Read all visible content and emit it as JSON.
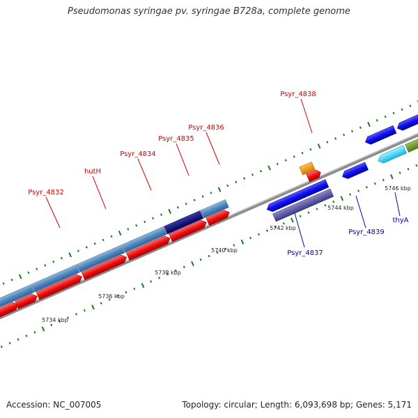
{
  "title": "Pseudomonas syringae pv. syringae B728a, complete genome",
  "footer": {
    "accession": "Accession: NC_007005",
    "summary": "Topology: circular; Length: 6,093,698 bp; Genes: 5,171"
  },
  "colors": {
    "backbone": "#8c8c8c",
    "tick": "#1a7a1a",
    "forward_label": "#cc0000",
    "reverse_label": "#0000b4",
    "leader": "#cc0000",
    "leader_rev": "#0000b4"
  },
  "scale_labels": [
    "5734 kbp",
    "5736 kbp",
    "5738 kbp",
    "5740 kbp",
    "5742 kbp",
    "5744 kbp",
    "5746 kbp"
  ],
  "forward_labels": [
    "Psyr_4832",
    "hutH",
    "Psyr_4834",
    "Psyr_4835",
    "Psyr_4836",
    "Psyr_4838"
  ],
  "reverse_labels": [
    "Psyr_4837",
    "Psyr_4839",
    "thyA"
  ]
}
